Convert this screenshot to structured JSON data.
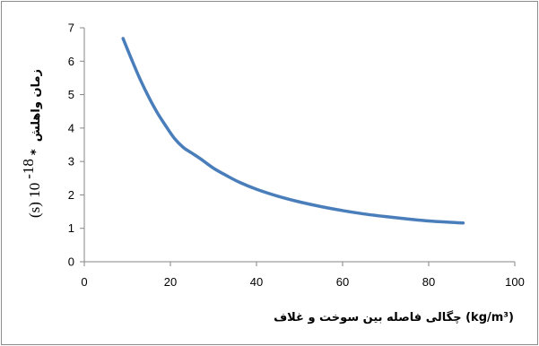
{
  "chart_data": {
    "type": "line",
    "title": "",
    "xlabel": "چگالی فاصله بین سوخت و غلاف (kg/m³)",
    "ylabel_persian": "زمان واهلش",
    "ylabel_unit": "(s)  10",
    "ylabel_exponent": "-18",
    "ylabel_star": "*",
    "xlim": [
      0,
      100
    ],
    "ylim": [
      0,
      7
    ],
    "xticks": [
      "0",
      "20",
      "40",
      "60",
      "80",
      "100"
    ],
    "yticks": [
      "0",
      "1",
      "2",
      "3",
      "4",
      "5",
      "6",
      "7"
    ],
    "grid": false,
    "legend": "none",
    "series": [
      {
        "color": "#4a7ebb",
        "x": [
          9,
          11,
          13,
          15,
          17,
          19,
          21,
          23,
          25,
          27,
          30,
          33,
          36,
          40,
          45,
          50,
          55,
          60,
          65,
          70,
          75,
          80,
          85,
          88
        ],
        "y": [
          6.68,
          6.05,
          5.45,
          4.92,
          4.45,
          4.05,
          3.68,
          3.42,
          3.25,
          3.08,
          2.8,
          2.58,
          2.38,
          2.17,
          1.96,
          1.79,
          1.65,
          1.53,
          1.43,
          1.35,
          1.28,
          1.22,
          1.18,
          1.16
        ]
      }
    ]
  }
}
